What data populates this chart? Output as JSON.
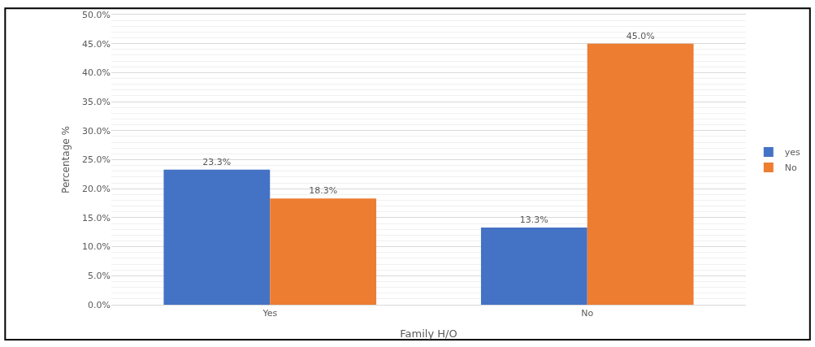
{
  "chart_data": {
    "type": "bar",
    "xlabel": "Family H/O",
    "ylabel": "Percentage %",
    "categories": [
      "Yes",
      "No"
    ],
    "series": [
      {
        "name": "yes",
        "color": "#4472c4",
        "values": [
          23.3,
          13.3
        ],
        "value_labels": [
          "23.3%",
          "13.3%"
        ]
      },
      {
        "name": "No",
        "color": "#ed7d31",
        "values": [
          18.3,
          45.0
        ],
        "value_labels": [
          "18.3%",
          "45.0%"
        ]
      }
    ],
    "ylim": [
      0,
      50
    ],
    "yticks": [
      {
        "value": 0,
        "label": "0.0%"
      },
      {
        "value": 5,
        "label": "5.0%"
      },
      {
        "value": 10,
        "label": "10.0%"
      },
      {
        "value": 15,
        "label": "15.0%"
      },
      {
        "value": 20,
        "label": "20.0%"
      },
      {
        "value": 25,
        "label": "25.0%"
      },
      {
        "value": 30,
        "label": "30.0%"
      },
      {
        "value": 35,
        "label": "35.0%"
      },
      {
        "value": 40,
        "label": "40.0%"
      },
      {
        "value": 45,
        "label": "45.0%"
      },
      {
        "value": 50,
        "label": "50.0%"
      }
    ],
    "grid": "y",
    "legend": "right"
  }
}
